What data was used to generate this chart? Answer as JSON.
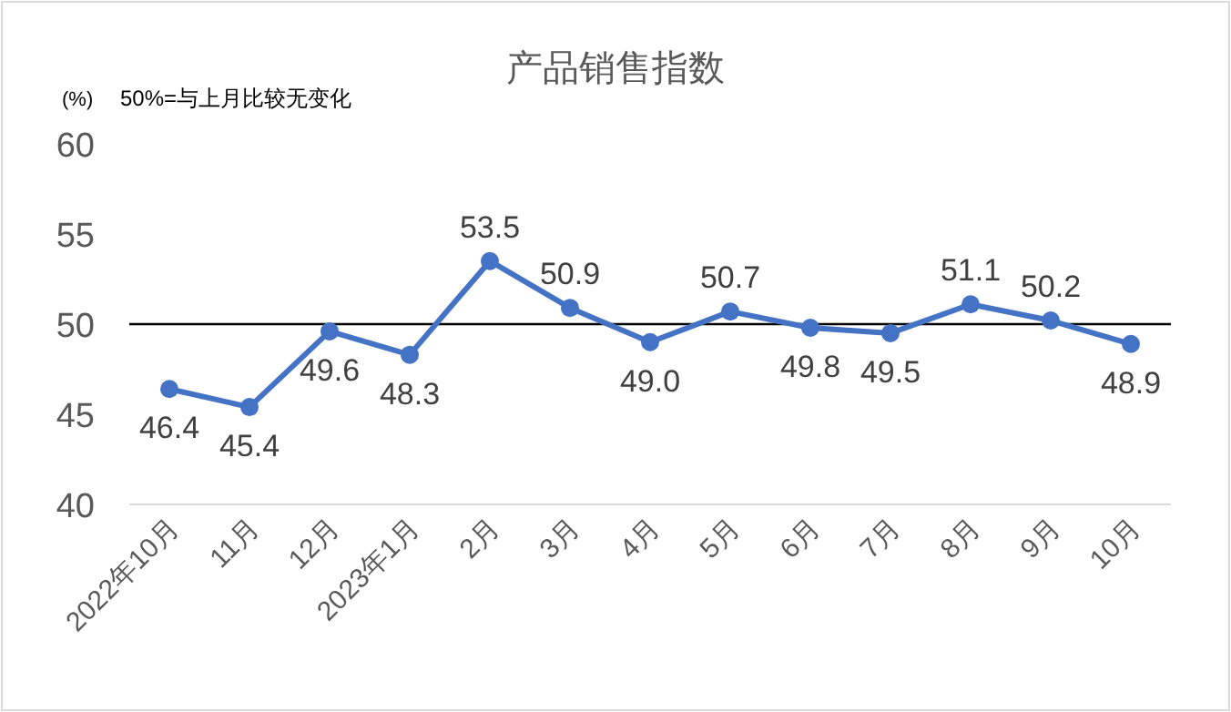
{
  "chart_data": {
    "type": "line",
    "title": "产品销售指数",
    "ylabel": "(%)",
    "annotations": [
      "50%=与上月比较无变化"
    ],
    "categories": [
      "2022年10月",
      "11月",
      "12月",
      "2023年1月",
      "2月",
      "3月",
      "4月",
      "5月",
      "6月",
      "7月",
      "8月",
      "9月",
      "10月"
    ],
    "series": [
      {
        "color": "#4472c4",
        "values": [
          46.4,
          45.4,
          49.6,
          48.3,
          53.5,
          50.9,
          49.0,
          50.7,
          49.8,
          49.5,
          51.1,
          50.2,
          48.9
        ],
        "value_labels": [
          "46.4",
          "45.4",
          "49.6",
          "48.3",
          "53.5",
          "50.9",
          "49.0",
          "50.7",
          "49.8",
          "49.5",
          "51.1",
          "50.2",
          "48.9"
        ]
      }
    ],
    "ylim": [
      40,
      60
    ],
    "yticks": [
      40,
      45,
      50,
      55,
      60
    ],
    "grid": false,
    "marker": "circle",
    "line_style": "solid",
    "ref_lines": [
      {
        "axis": "y",
        "value": 50,
        "color": "#000000"
      }
    ]
  }
}
